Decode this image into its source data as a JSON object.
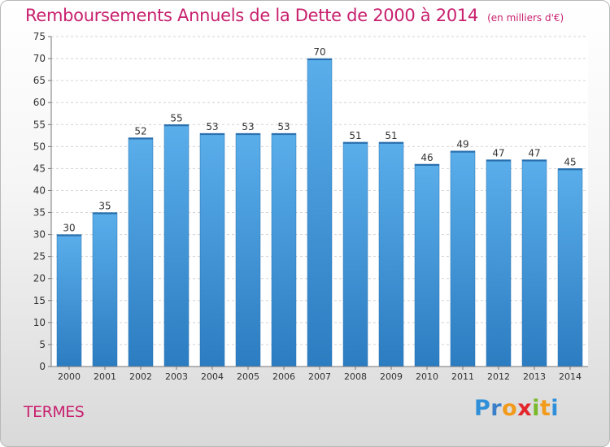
{
  "title": "Remboursements Annuels de la Dette de 2000 à 2014",
  "subtitle": "(en milliers d'€)",
  "place": "TERMES",
  "logo": {
    "letters": [
      "P",
      "r",
      "o",
      "x",
      "i",
      "t",
      "i"
    ],
    "colors": [
      "#2f8fd8",
      "#3a7fc8",
      "#f29a1a",
      "#e3262b",
      "#7ab929",
      "#f29a1a",
      "#2f8fd8"
    ]
  },
  "colors": {
    "bar": "#4fa3e0",
    "bar_dark": "#2d7dc2",
    "title": "#c8206e"
  },
  "chart_data": {
    "type": "bar",
    "title": "Remboursements Annuels de la Dette de 2000 à 2014",
    "subtitle": "(en milliers d'€)",
    "categories": [
      "2000",
      "2001",
      "2002",
      "2003",
      "2004",
      "2005",
      "2006",
      "2007",
      "2008",
      "2009",
      "2010",
      "2011",
      "2012",
      "2013",
      "2014"
    ],
    "values": [
      30,
      35,
      52,
      55,
      53,
      53,
      53,
      70,
      51,
      51,
      46,
      49,
      47,
      47,
      45
    ],
    "ylim": [
      0,
      75
    ],
    "yticks": [
      0,
      5,
      10,
      15,
      20,
      25,
      30,
      35,
      40,
      45,
      50,
      55,
      60,
      65,
      70,
      75
    ],
    "grid": true,
    "data_labels": true
  }
}
